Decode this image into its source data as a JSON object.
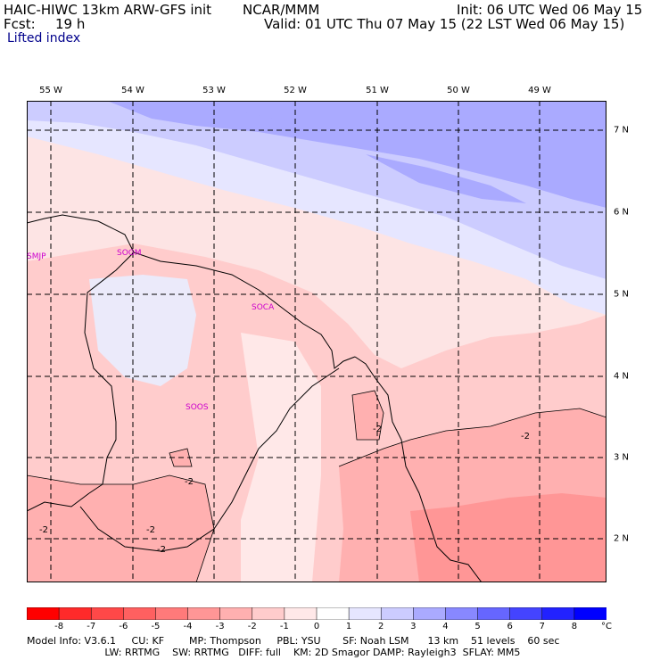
{
  "header": {
    "model": "HAIC-HIWC 13km ARW-GFS init",
    "center": "NCAR/MMM",
    "init": "Init: 06 UTC Wed 06 May 15",
    "fcst_label": "Fcst:",
    "fcst_value": "19 h",
    "valid": "Valid: 01 UTC Thu 07 May 15 (22 LST Wed 06 May 15)",
    "field": "Lifted index"
  },
  "map": {
    "lon_labels": [
      "55 W",
      "54 W",
      "53 W",
      "52 W",
      "51 W",
      "50 W",
      "49 W"
    ],
    "lat_labels": [
      "7 N",
      "6 N",
      "5 N",
      "4 N",
      "3 N",
      "2 N"
    ],
    "stations": [
      "SMJP",
      "SOGM",
      "SOCA",
      "SOOS"
    ],
    "contour_labels": [
      "-2",
      "-2",
      "-2",
      "-2",
      "-2",
      "-2"
    ]
  },
  "colorbar": {
    "ticks": [
      "-8",
      "-7",
      "-6",
      "-5",
      "-4",
      "-3",
      "-2",
      "-1",
      "0",
      "1",
      "2",
      "3",
      "4",
      "5",
      "6",
      "7",
      "8"
    ],
    "unit": "°C",
    "colors": [
      "#ff0000",
      "#ff2a2a",
      "#ff4848",
      "#ff6060",
      "#ff7a7a",
      "#ff9696",
      "#ffb0b0",
      "#ffcccc",
      "#ffe8e8",
      "#ffffff",
      "#e6e6ff",
      "#ccccff",
      "#aaaaff",
      "#8888ff",
      "#6666ff",
      "#4444ff",
      "#2222ff",
      "#0000ff"
    ]
  },
  "footer": {
    "line1": "Model Info: V3.6.1     CU: KF        MP: Thompson     PBL: YSU       SF: Noah LSM      13 km    51 levels    60 sec",
    "line2": "                         LW: RRTMG    SW: RRTMG   DIFF: full    KM: 2D Smagor DAMP: Rayleigh3  SFLAY: MM5"
  }
}
